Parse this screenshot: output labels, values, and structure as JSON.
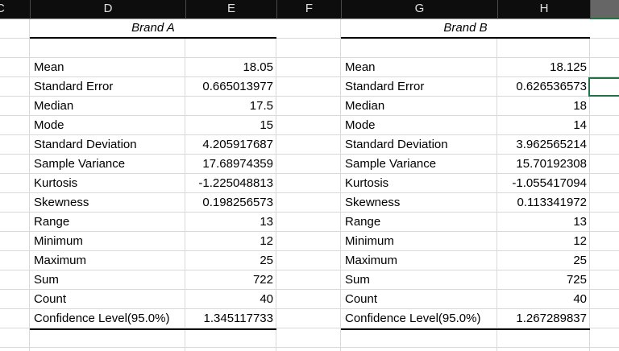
{
  "sheet": {
    "column_headers": [
      "C",
      "D",
      "E",
      "F",
      "G",
      "H",
      ""
    ],
    "tables": [
      {
        "title": "Brand A",
        "rows": [
          {
            "label": "Mean",
            "value": "18.05"
          },
          {
            "label": "Standard Error",
            "value": "0.665013977"
          },
          {
            "label": "Median",
            "value": "17.5"
          },
          {
            "label": "Mode",
            "value": "15"
          },
          {
            "label": "Standard Deviation",
            "value": "4.205917687"
          },
          {
            "label": "Sample Variance",
            "value": "17.68974359"
          },
          {
            "label": "Kurtosis",
            "value": "-1.225048813"
          },
          {
            "label": "Skewness",
            "value": "0.198256573"
          },
          {
            "label": "Range",
            "value": "13"
          },
          {
            "label": "Minimum",
            "value": "12"
          },
          {
            "label": "Maximum",
            "value": "25"
          },
          {
            "label": "Sum",
            "value": "722"
          },
          {
            "label": "Count",
            "value": "40"
          },
          {
            "label": "Confidence Level(95.0%)",
            "value": "1.345117733"
          }
        ]
      },
      {
        "title": "Brand B",
        "rows": [
          {
            "label": "Mean",
            "value": "18.125"
          },
          {
            "label": "Standard Error",
            "value": "0.626536573"
          },
          {
            "label": "Median",
            "value": "18"
          },
          {
            "label": "Mode",
            "value": "14"
          },
          {
            "label": "Standard Deviation",
            "value": "3.962565214"
          },
          {
            "label": "Sample Variance",
            "value": "15.70192308"
          },
          {
            "label": "Kurtosis",
            "value": "-1.055417094"
          },
          {
            "label": "Skewness",
            "value": "0.113341972"
          },
          {
            "label": "Range",
            "value": "13"
          },
          {
            "label": "Minimum",
            "value": "12"
          },
          {
            "label": "Maximum",
            "value": "25"
          },
          {
            "label": "Sum",
            "value": "725"
          },
          {
            "label": "Count",
            "value": "40"
          },
          {
            "label": "Confidence Level(95.0%)",
            "value": "1.267289837"
          }
        ]
      }
    ],
    "colors": {
      "selection_green": "#217346",
      "header_bg": "#0d0d0d",
      "selected_column_header_bg": "#666666",
      "gridline": "#d9d9d9"
    }
  }
}
